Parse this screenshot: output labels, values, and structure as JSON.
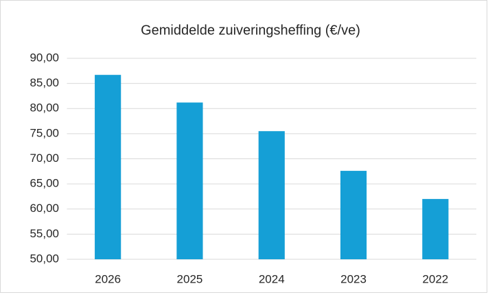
{
  "chart_data": {
    "type": "bar",
    "title": "Gemiddelde zuiveringsheffing (€/ve)",
    "categories": [
      "2026",
      "2025",
      "2024",
      "2023",
      "2022"
    ],
    "values": [
      86.7,
      81.2,
      75.5,
      67.6,
      62.0
    ],
    "color": "#159fd6",
    "ylim": [
      50,
      90
    ],
    "yticks": [
      {
        "value": 50,
        "label": "50,00"
      },
      {
        "value": 55,
        "label": "55,00"
      },
      {
        "value": 60,
        "label": "60,00"
      },
      {
        "value": 65,
        "label": "65,00"
      },
      {
        "value": 70,
        "label": "70,00"
      },
      {
        "value": 75,
        "label": "75,00"
      },
      {
        "value": 80,
        "label": "80,00"
      },
      {
        "value": 85,
        "label": "85,00"
      },
      {
        "value": 90,
        "label": "90,00"
      }
    ],
    "grid": true
  }
}
